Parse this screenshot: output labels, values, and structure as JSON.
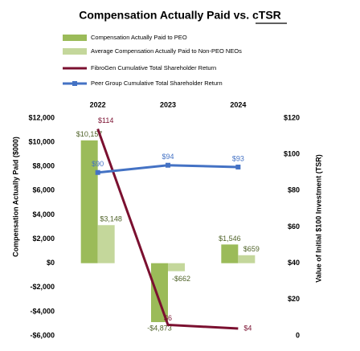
{
  "chart_data": {
    "type": "bar_line",
    "title": "Compensation Actually Paid vs. cTSR",
    "y_label": "Compensation Actually Paid ($000)",
    "y2_label": "Value of Initial $100 Investment (TSR)",
    "categories": [
      "2022",
      "2023",
      "2024"
    ],
    "series": [
      {
        "name": "Compensation Actually Paid to PEO",
        "type": "bar",
        "color": "#9bbb59",
        "values": [
          10157,
          -4873,
          1546
        ],
        "value_labels": [
          "$10,157",
          "-$4,873",
          "$1,546"
        ]
      },
      {
        "name": "Average Compensation Actually Paid to Non-PEO NEOs",
        "type": "bar",
        "color": "#c4d79b",
        "values": [
          3148,
          -662,
          659
        ],
        "value_labels": [
          "$3,148",
          "-$662",
          "$659"
        ]
      },
      {
        "name": "FibroGen Cumulative Total Shareholder Return",
        "type": "line",
        "axis": "y2",
        "color": "#7b1030",
        "values": [
          114,
          6,
          4
        ],
        "value_labels": [
          "$114",
          "$6",
          "$4"
        ]
      },
      {
        "name": "Peer Group Cumulative Total Shareholder Return",
        "type": "line",
        "axis": "y2",
        "color": "#4472c4",
        "values": [
          90,
          94,
          93
        ],
        "value_labels": [
          "$90",
          "$94",
          "$93"
        ]
      }
    ],
    "ylim": [
      -6000,
      12000
    ],
    "yticks": [
      {
        "value": -6000,
        "label": "-$6,000"
      },
      {
        "value": -4000,
        "label": "-$4,000"
      },
      {
        "value": -2000,
        "label": "-$2,000"
      },
      {
        "value": 0,
        "label": "$0"
      },
      {
        "value": 2000,
        "label": "$2,000"
      },
      {
        "value": 4000,
        "label": "$4,000"
      },
      {
        "value": 6000,
        "label": "$6,000"
      },
      {
        "value": 8000,
        "label": "$8,000"
      },
      {
        "value": 10000,
        "label": "$10,000"
      },
      {
        "value": 12000,
        "label": "$12,000"
      }
    ],
    "y2lim": [
      0,
      120
    ],
    "y2ticks": [
      0,
      {
        "value": 20,
        "label": "$20"
      },
      {
        "value": 40,
        "label": "$40"
      },
      {
        "value": 60,
        "label": "$60"
      },
      {
        "value": 80,
        "label": "$80"
      },
      {
        "value": 100,
        "label": "$100"
      },
      {
        "value": 120,
        "label": "$120"
      }
    ]
  }
}
